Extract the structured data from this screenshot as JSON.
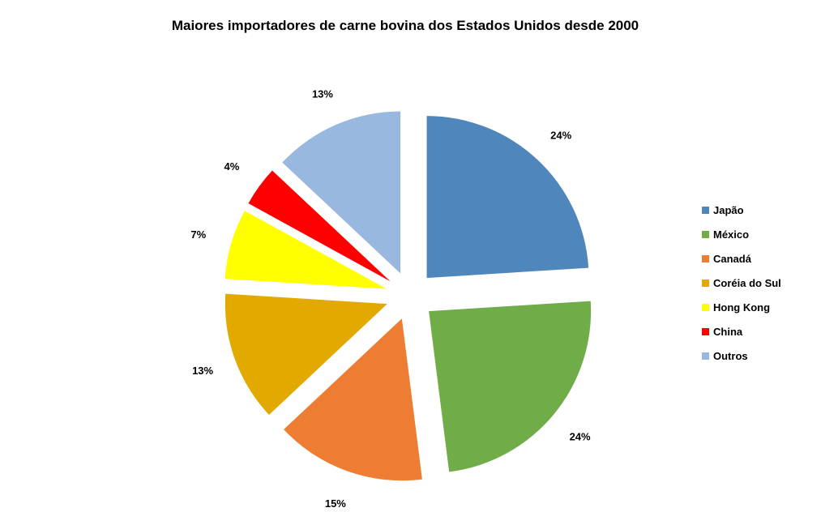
{
  "chart_data": {
    "type": "pie",
    "title": "Maiores importadores de carne bovina dos Estados Unidos desde 2000",
    "exploded": true,
    "legend_position": "right",
    "slices": [
      {
        "label": "Japão",
        "value": 24,
        "display": "24%",
        "color": "#4f86bc"
      },
      {
        "label": "México",
        "value": 24,
        "display": "24%",
        "color": "#70ac48"
      },
      {
        "label": "Canadá",
        "value": 15,
        "display": "15%",
        "color": "#ed7d33"
      },
      {
        "label": "Coréia do Sul",
        "value": 13,
        "display": "13%",
        "color": "#e2a900"
      },
      {
        "label": "Hong Kong",
        "value": 7,
        "display": "7%",
        "color": "#ffff00"
      },
      {
        "label": "China",
        "value": 4,
        "display": "4%",
        "color": "#ff0000"
      },
      {
        "label": "Outros",
        "value": 13,
        "display": "13%",
        "color": "#98b8e0"
      }
    ]
  }
}
